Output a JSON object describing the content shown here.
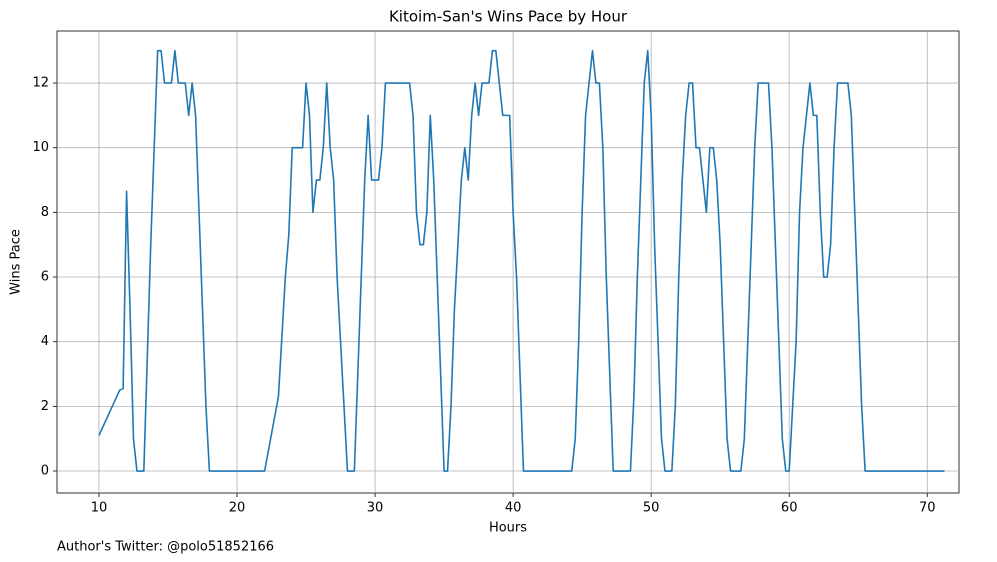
{
  "chart_data": {
    "type": "line",
    "title": "Kitoim-San's Wins Pace by Hour",
    "x_label": "Hours",
    "y_label": "Wins Pace",
    "annotation": "Author's Twitter: @polo51852166",
    "xlim": [
      6.96,
      72.3
    ],
    "ylim": [
      -0.68,
      13.61
    ],
    "xticks": [
      10,
      20,
      30,
      40,
      50,
      60,
      70
    ],
    "yticks": [
      0,
      2,
      4,
      6,
      8,
      10,
      12
    ],
    "grid": true,
    "x": [
      10,
      11.5,
      11.75,
      12,
      12.25,
      12.5,
      12.75,
      13.25,
      13.5,
      13.75,
      14,
      14.25,
      14.5,
      14.75,
      15.25,
      15.5,
      15.75,
      16.25,
      16.5,
      16.75,
      17,
      17.25,
      17.5,
      17.75,
      18,
      22,
      23,
      23.5,
      23.75,
      24,
      24.75,
      25,
      25.25,
      25.5,
      25.75,
      26,
      26.25,
      26.5,
      26.75,
      27,
      27.25,
      27.5,
      27.75,
      28,
      28.5,
      28.75,
      29,
      29.25,
      29.5,
      29.75,
      30.25,
      30.5,
      30.75,
      32.5,
      32.75,
      33,
      33.25,
      33.5,
      33.75,
      34,
      34.25,
      34.5,
      34.75,
      35,
      35.25,
      35.5,
      35.75,
      36,
      36.25,
      36.5,
      36.75,
      37,
      37.25,
      37.5,
      37.75,
      38.25,
      38.5,
      38.75,
      39,
      39.25,
      39.75,
      40,
      40.25,
      40.5,
      40.75,
      44.25,
      44.5,
      44.75,
      45,
      45.25,
      45.5,
      45.75,
      46,
      46.25,
      46.5,
      46.75,
      47,
      47.25,
      48.5,
      48.75,
      49,
      49.25,
      49.5,
      49.75,
      50,
      50.25,
      50.5,
      50.75,
      51,
      51.5,
      51.75,
      52,
      52.25,
      52.5,
      52.75,
      53,
      53.25,
      53.5,
      53.75,
      54,
      54.25,
      54.5,
      54.75,
      55,
      55.25,
      55.5,
      55.75,
      56.5,
      56.75,
      57,
      57.25,
      57.5,
      57.75,
      58.5,
      58.75,
      59,
      59.25,
      59.5,
      59.75,
      60,
      60.25,
      60.5,
      60.75,
      61,
      61.25,
      61.5,
      61.75,
      62,
      62.25,
      62.5,
      62.75,
      63,
      63.25,
      63.5,
      64.25,
      64.5,
      64.75,
      65,
      65.25,
      65.5,
      71.25
    ],
    "series": [
      {
        "name": "Wins Pace",
        "color": "#1f77b4",
        "values": [
          1.1,
          2.5,
          2.55,
          8.65,
          5,
          1,
          0,
          0,
          3.5,
          7,
          10,
          13,
          13,
          12,
          12,
          13,
          12,
          12,
          11,
          12,
          11,
          8,
          5,
          2,
          0,
          0,
          2.3,
          6,
          7.3,
          10,
          10,
          12,
          11,
          8,
          9,
          9,
          10,
          12,
          10,
          9,
          6,
          4,
          2,
          0,
          0,
          3,
          6,
          9,
          11,
          9,
          9,
          10,
          12,
          12,
          11,
          8,
          7,
          7,
          8,
          11,
          9,
          6,
          3,
          0,
          0,
          2,
          5,
          7,
          9,
          10,
          9,
          11,
          12,
          11,
          12,
          12,
          13,
          13,
          12,
          11,
          11,
          8,
          6,
          3,
          0,
          0,
          1,
          4,
          8,
          11,
          12,
          13,
          12,
          12,
          10,
          6,
          3,
          0,
          0,
          2.3,
          6,
          9,
          12,
          13,
          11,
          7,
          4,
          1,
          0,
          0,
          2,
          6,
          9,
          11,
          12,
          12,
          10,
          10,
          9,
          8,
          10,
          10,
          9,
          7,
          4,
          1,
          0,
          0,
          1,
          4,
          7,
          10,
          12,
          12,
          10,
          7,
          4,
          1,
          0,
          0,
          2,
          4,
          8,
          10,
          11,
          12,
          11,
          11,
          8,
          6,
          6,
          7,
          10,
          12,
          12,
          11,
          8,
          5,
          2,
          0,
          0
        ]
      }
    ]
  }
}
